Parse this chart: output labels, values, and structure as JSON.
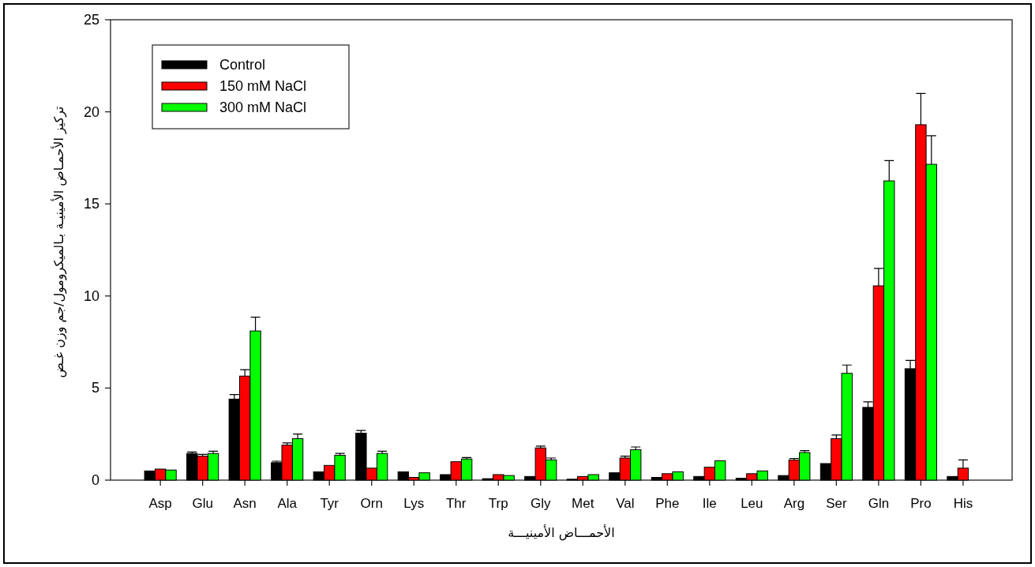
{
  "chart_data": {
    "type": "bar",
    "xlabel": "الأحمـــاض الأمينيـــة",
    "ylabel": "تركيز الأحمـاض الأمينيـة بـالميكرومول/جم وزن غـض",
    "categories": [
      "Asp",
      "Glu",
      "Asn",
      "Ala",
      "Tyr",
      "Orn",
      "Lys",
      "Thr",
      "Trp",
      "Gly",
      "Met",
      "Val",
      "Phe",
      "Ile",
      "Leu",
      "Arg",
      "Ser",
      "Gln",
      "Pro",
      "His"
    ],
    "ylim": [
      0,
      25
    ],
    "yticks": [
      0,
      5,
      10,
      15,
      20,
      25
    ],
    "legend": "top left",
    "series": [
      {
        "name": "Control",
        "color": "#000000",
        "values": [
          0.5,
          1.45,
          4.4,
          0.95,
          0.45,
          2.55,
          0.45,
          0.3,
          0.08,
          0.2,
          0.05,
          0.4,
          0.15,
          0.2,
          0.1,
          0.25,
          0.9,
          3.95,
          6.05,
          0.2
        ],
        "errors": [
          null,
          0.08,
          0.25,
          0.08,
          null,
          0.15,
          null,
          null,
          null,
          null,
          null,
          null,
          null,
          null,
          null,
          null,
          null,
          0.3,
          0.45,
          null
        ]
      },
      {
        "name": "150 mM NaCl",
        "color": "#ff0000",
        "values": [
          0.6,
          1.3,
          5.65,
          1.9,
          0.8,
          0.65,
          0.15,
          1.0,
          0.3,
          1.75,
          0.2,
          1.2,
          0.35,
          0.7,
          0.35,
          1.1,
          2.25,
          10.55,
          19.3,
          0.65
        ],
        "errors": [
          null,
          0.1,
          0.35,
          0.12,
          null,
          null,
          null,
          null,
          null,
          0.1,
          null,
          0.1,
          null,
          null,
          null,
          0.08,
          0.2,
          0.95,
          1.7,
          0.45
        ]
      },
      {
        "name": "300 mM NaCl",
        "color": "#00ff00",
        "values": [
          0.55,
          1.45,
          8.1,
          2.25,
          1.35,
          1.45,
          0.4,
          1.15,
          0.25,
          1.1,
          0.3,
          1.65,
          0.45,
          1.05,
          0.5,
          1.5,
          5.8,
          16.25,
          17.15,
          null
        ],
        "errors": [
          null,
          0.12,
          0.75,
          0.25,
          0.1,
          0.12,
          null,
          0.08,
          null,
          0.1,
          null,
          0.15,
          null,
          null,
          null,
          0.1,
          0.45,
          1.1,
          1.55,
          null
        ]
      }
    ]
  }
}
